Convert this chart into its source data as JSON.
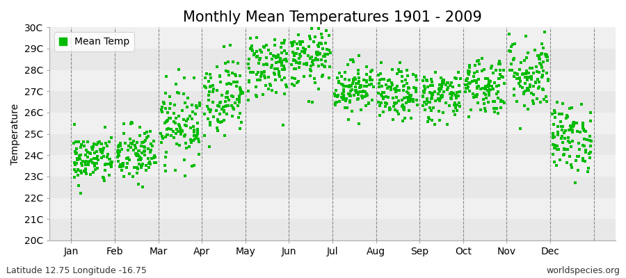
{
  "title": "Monthly Mean Temperatures 1901 - 2009",
  "ylabel": "Temperature",
  "ylim": [
    20,
    30
  ],
  "ytick_labels": [
    "20C",
    "21C",
    "22C",
    "23C",
    "24C",
    "25C",
    "26C",
    "27C",
    "28C",
    "29C",
    "30C"
  ],
  "ytick_values": [
    20,
    21,
    22,
    23,
    24,
    25,
    26,
    27,
    28,
    29,
    30
  ],
  "month_labels": [
    "Jan",
    "Feb",
    "Mar",
    "Apr",
    "May",
    "Jun",
    "Jul",
    "Aug",
    "Sep",
    "Oct",
    "Nov",
    "Dec"
  ],
  "legend_label": "Mean Temp",
  "marker_color": "#00bb00",
  "plot_bg_color": "#f0f0f0",
  "fig_bg_color": "#ffffff",
  "footer_left": "Latitude 12.75 Longitude -16.75",
  "footer_right": "worldspecies.org",
  "title_fontsize": 15,
  "axis_fontsize": 10,
  "footer_fontsize": 9,
  "monthly_means": [
    23.8,
    24.0,
    25.5,
    26.8,
    28.2,
    28.5,
    27.2,
    26.8,
    26.8,
    27.3,
    27.8,
    24.8
  ],
  "monthly_stds": [
    0.6,
    0.7,
    0.9,
    0.9,
    0.8,
    0.7,
    0.6,
    0.6,
    0.6,
    0.7,
    0.9,
    0.8
  ],
  "n_years": 109,
  "seed": 42
}
